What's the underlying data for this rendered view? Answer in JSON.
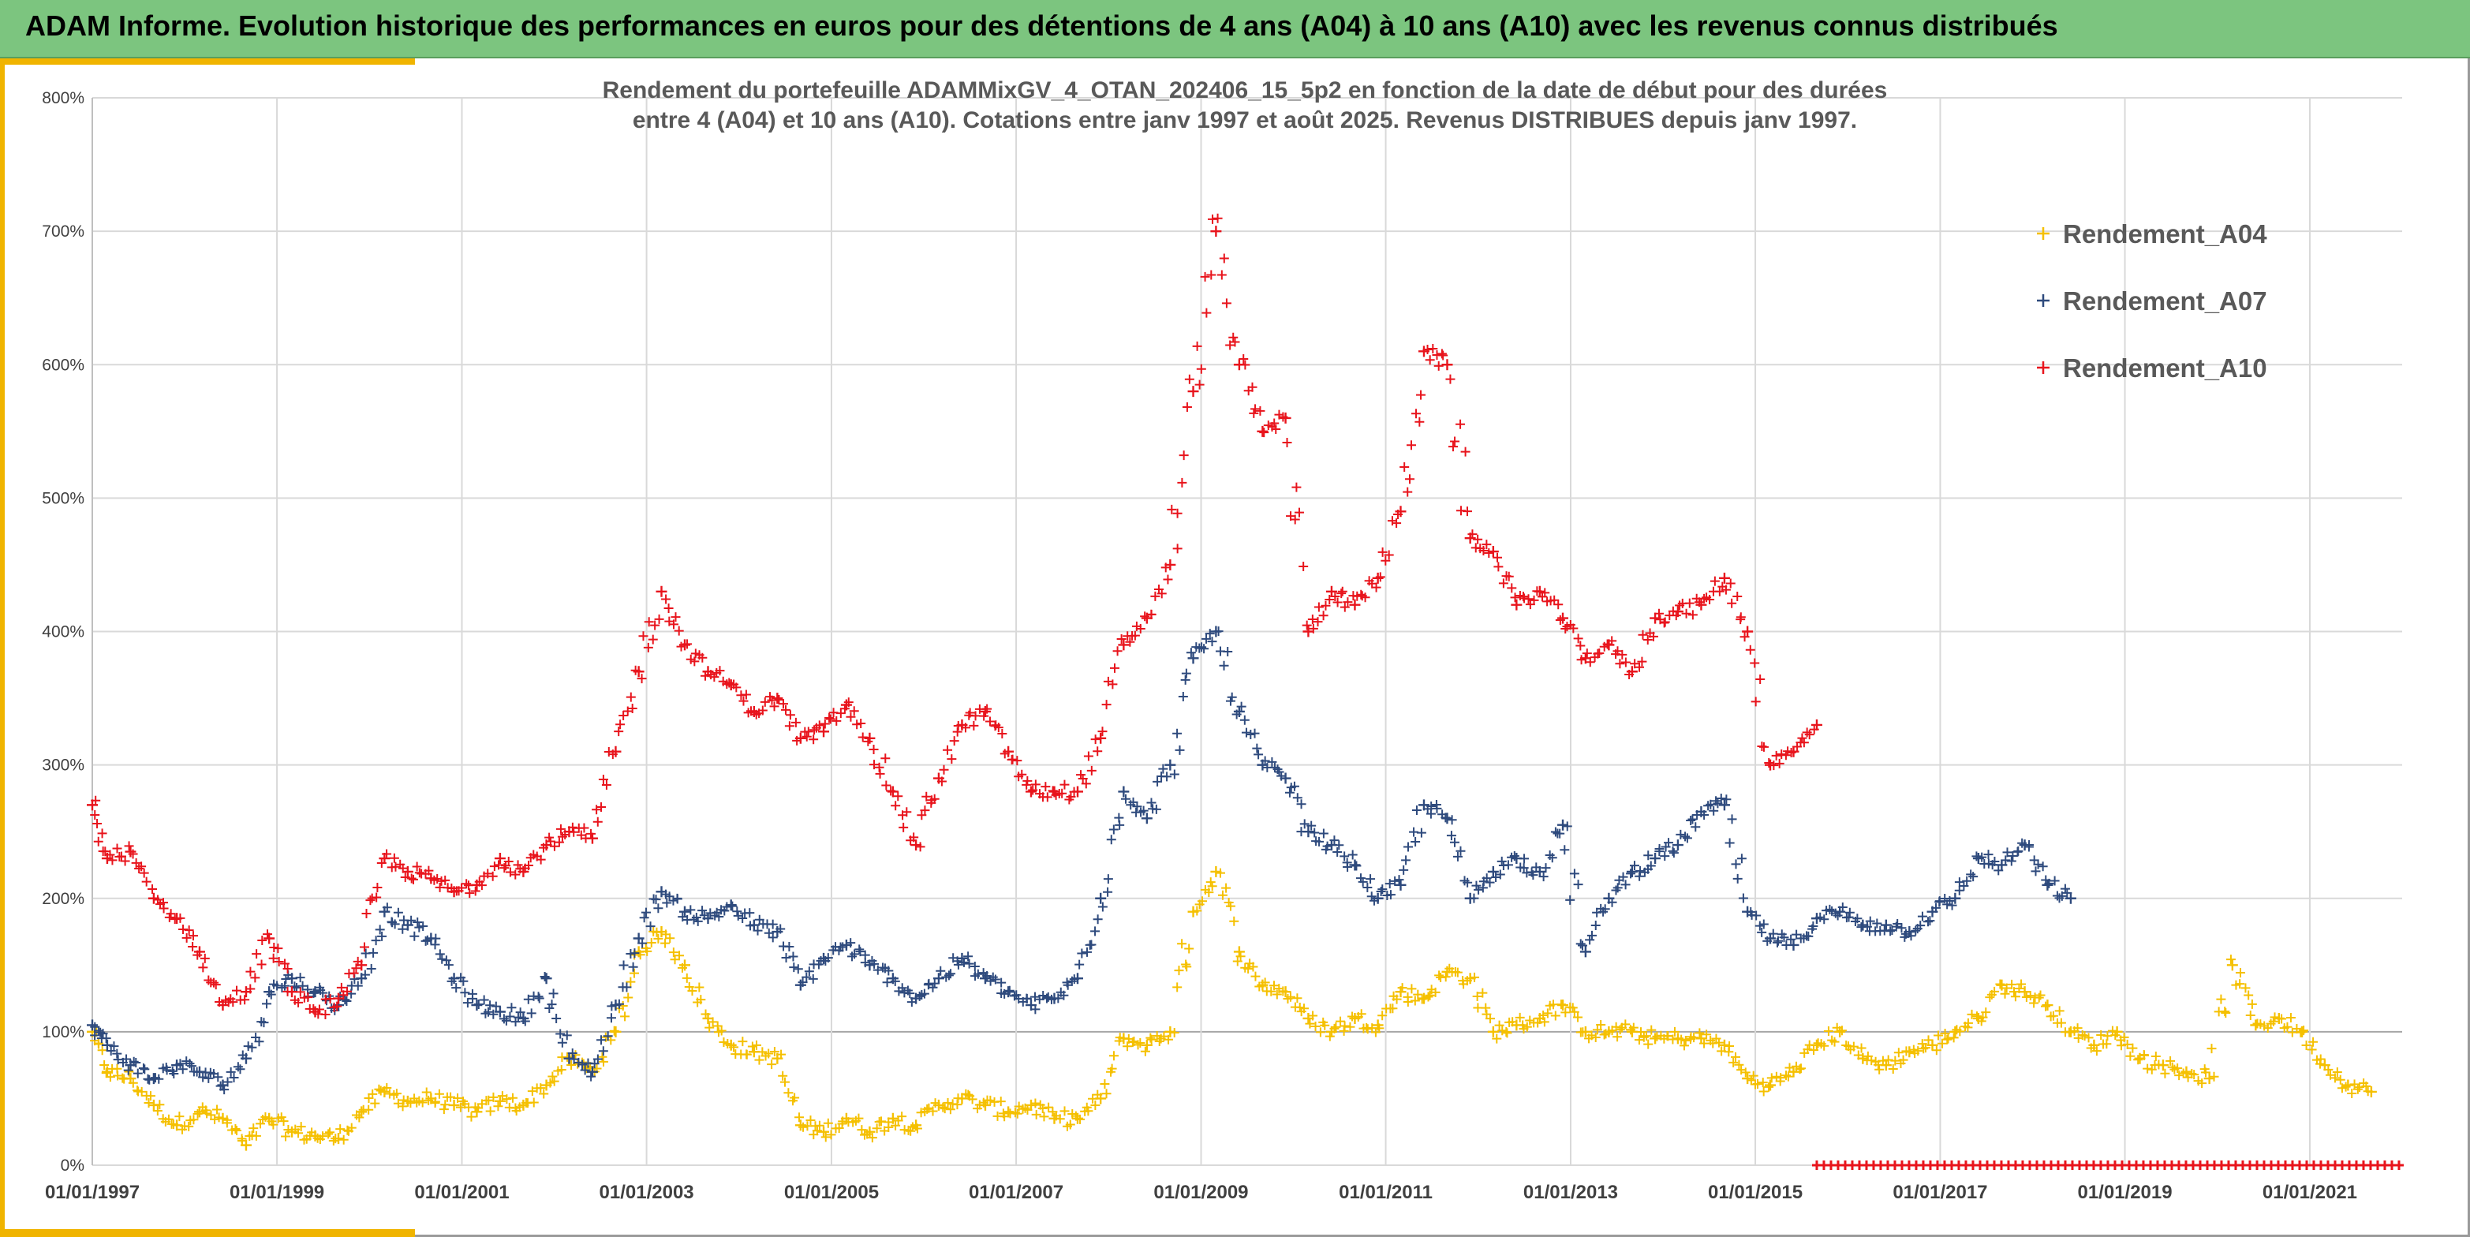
{
  "header": {
    "title": "ADAM Informe. Evolution historique des performances en euros pour des détentions de 4 ans (A04) à 10 ans (A10) avec les revenus connus distribués"
  },
  "colors": {
    "header_bg": "#7cc57f",
    "accent": "#f0b400",
    "A04": "#f5c000",
    "A07": "#2e4a7d",
    "A10": "#e8141c",
    "grid": "#d9d9d9"
  },
  "chart_data": {
    "type": "scatter",
    "title": [
      "Rendement du portefeuille ADAMMixGV_4_OTAN_202406_15_5p2  en fonction de la date de début pour des durées",
      "entre 4 (A04) et 10 ans (A10). Cotations entre janv 1997 et août 2025. Revenus DISTRIBUES depuis janv 1997."
    ],
    "xlabel": "",
    "ylabel": "",
    "x_ticks": [
      "01/01/1997",
      "01/01/1999",
      "01/01/2001",
      "01/01/2003",
      "01/01/2005",
      "01/01/2007",
      "01/01/2009",
      "01/01/2011",
      "01/01/2013",
      "01/01/2015",
      "01/01/2017",
      "01/01/2019",
      "01/01/2021"
    ],
    "y_ticks": [
      "0%",
      "100%",
      "200%",
      "300%",
      "400%",
      "500%",
      "600%",
      "700%",
      "800%"
    ],
    "ylim": [
      0,
      800
    ],
    "xlim": [
      "1997-01-01",
      "2022-01-01"
    ],
    "grid": true,
    "legend_position": "top-right",
    "marker": "+",
    "series": [
      {
        "name": "Rendement_A04",
        "points": [
          [
            "1997-01",
            100
          ],
          [
            "1997-03",
            70
          ],
          [
            "1997-06",
            65
          ],
          [
            "1997-09",
            45
          ],
          [
            "1997-12",
            30
          ],
          [
            "1998-03",
            40
          ],
          [
            "1998-06",
            35
          ],
          [
            "1998-09",
            15
          ],
          [
            "1998-12",
            35
          ],
          [
            "1999-03",
            25
          ],
          [
            "1999-06",
            22
          ],
          [
            "1999-09",
            20
          ],
          [
            "1999-12",
            40
          ],
          [
            "2000-03",
            55
          ],
          [
            "2000-06",
            48
          ],
          [
            "2000-09",
            50
          ],
          [
            "2000-12",
            45
          ],
          [
            "2001-03",
            40
          ],
          [
            "2001-06",
            48
          ],
          [
            "2001-09",
            45
          ],
          [
            "2001-12",
            60
          ],
          [
            "2002-03",
            80
          ],
          [
            "2002-06",
            70
          ],
          [
            "2002-09",
            100
          ],
          [
            "2002-12",
            160
          ],
          [
            "2003-03",
            175
          ],
          [
            "2003-06",
            150
          ],
          [
            "2003-09",
            110
          ],
          [
            "2003-12",
            90
          ],
          [
            "2004-03",
            85
          ],
          [
            "2004-06",
            80
          ],
          [
            "2004-09",
            30
          ],
          [
            "2004-12",
            25
          ],
          [
            "2005-03",
            35
          ],
          [
            "2005-06",
            25
          ],
          [
            "2005-09",
            35
          ],
          [
            "2005-12",
            30
          ],
          [
            "2006-03",
            45
          ],
          [
            "2006-06",
            50
          ],
          [
            "2006-09",
            45
          ],
          [
            "2006-12",
            40
          ],
          [
            "2007-03",
            45
          ],
          [
            "2007-06",
            35
          ],
          [
            "2007-09",
            35
          ],
          [
            "2007-12",
            50
          ],
          [
            "2008-03",
            95
          ],
          [
            "2008-06",
            90
          ],
          [
            "2008-09",
            100
          ],
          [
            "2008-12",
            190
          ],
          [
            "2009-03",
            220
          ],
          [
            "2009-06",
            160
          ],
          [
            "2009-09",
            135
          ],
          [
            "2009-12",
            130
          ],
          [
            "2010-03",
            110
          ],
          [
            "2010-06",
            100
          ],
          [
            "2010-09",
            110
          ],
          [
            "2010-12",
            105
          ],
          [
            "2011-03",
            130
          ],
          [
            "2011-06",
            125
          ],
          [
            "2011-09",
            145
          ],
          [
            "2011-12",
            140
          ],
          [
            "2012-03",
            100
          ],
          [
            "2012-06",
            105
          ],
          [
            "2012-09",
            110
          ],
          [
            "2012-12",
            120
          ],
          [
            "2013-03",
            100
          ],
          [
            "2013-06",
            100
          ],
          [
            "2013-09",
            100
          ],
          [
            "2013-12",
            95
          ],
          [
            "2014-03",
            95
          ],
          [
            "2014-06",
            95
          ],
          [
            "2014-09",
            90
          ],
          [
            "2014-12",
            65
          ],
          [
            "2015-03",
            60
          ],
          [
            "2015-06",
            70
          ],
          [
            "2015-09",
            90
          ],
          [
            "2015-12",
            100
          ],
          [
            "2016-03",
            80
          ],
          [
            "2016-06",
            75
          ],
          [
            "2016-09",
            85
          ],
          [
            "2016-12",
            90
          ],
          [
            "2017-03",
            100
          ],
          [
            "2017-06",
            110
          ],
          [
            "2017-09",
            135
          ],
          [
            "2017-12",
            130
          ],
          [
            "2018-03",
            120
          ],
          [
            "2018-06",
            100
          ],
          [
            "2018-09",
            90
          ],
          [
            "2018-12",
            100
          ],
          [
            "2019-03",
            80
          ],
          [
            "2019-06",
            75
          ],
          [
            "2019-09",
            70
          ],
          [
            "2019-12",
            65
          ],
          [
            "2020-03",
            150
          ],
          [
            "2020-06",
            105
          ],
          [
            "2020-09",
            110
          ],
          [
            "2020-12",
            100
          ],
          [
            "2021-03",
            75
          ],
          [
            "2021-06",
            60
          ],
          [
            "2021-09",
            55
          ]
        ]
      },
      {
        "name": "Rendement_A07",
        "points": [
          [
            "1997-01",
            105
          ],
          [
            "1997-03",
            90
          ],
          [
            "1997-06",
            75
          ],
          [
            "1997-09",
            65
          ],
          [
            "1997-12",
            75
          ],
          [
            "1998-03",
            70
          ],
          [
            "1998-06",
            60
          ],
          [
            "1998-09",
            80
          ],
          [
            "1998-12",
            130
          ],
          [
            "1999-03",
            140
          ],
          [
            "1999-06",
            130
          ],
          [
            "1999-09",
            120
          ],
          [
            "1999-12",
            140
          ],
          [
            "2000-03",
            190
          ],
          [
            "2000-06",
            180
          ],
          [
            "2000-09",
            170
          ],
          [
            "2000-12",
            140
          ],
          [
            "2001-03",
            120
          ],
          [
            "2001-06",
            115
          ],
          [
            "2001-09",
            110
          ],
          [
            "2001-12",
            140
          ],
          [
            "2002-03",
            80
          ],
          [
            "2002-06",
            70
          ],
          [
            "2002-09",
            120
          ],
          [
            "2002-12",
            170
          ],
          [
            "2003-03",
            205
          ],
          [
            "2003-06",
            190
          ],
          [
            "2003-09",
            185
          ],
          [
            "2003-12",
            195
          ],
          [
            "2004-03",
            180
          ],
          [
            "2004-06",
            175
          ],
          [
            "2004-09",
            135
          ],
          [
            "2004-12",
            155
          ],
          [
            "2005-03",
            165
          ],
          [
            "2005-06",
            150
          ],
          [
            "2005-09",
            140
          ],
          [
            "2005-12",
            125
          ],
          [
            "2006-03",
            140
          ],
          [
            "2006-06",
            155
          ],
          [
            "2006-09",
            140
          ],
          [
            "2006-12",
            130
          ],
          [
            "2007-03",
            120
          ],
          [
            "2007-06",
            125
          ],
          [
            "2007-09",
            140
          ],
          [
            "2007-12",
            200
          ],
          [
            "2008-03",
            280
          ],
          [
            "2008-06",
            260
          ],
          [
            "2008-09",
            300
          ],
          [
            "2008-12",
            380
          ],
          [
            "2009-03",
            400
          ],
          [
            "2009-06",
            340
          ],
          [
            "2009-09",
            300
          ],
          [
            "2009-12",
            290
          ],
          [
            "2010-03",
            250
          ],
          [
            "2010-06",
            240
          ],
          [
            "2010-09",
            225
          ],
          [
            "2010-12",
            200
          ],
          [
            "2011-03",
            210
          ],
          [
            "2011-06",
            270
          ],
          [
            "2011-09",
            260
          ],
          [
            "2011-12",
            200
          ],
          [
            "2012-03",
            220
          ],
          [
            "2012-06",
            230
          ],
          [
            "2012-09",
            220
          ],
          [
            "2012-12",
            255
          ],
          [
            "2013-03",
            160
          ],
          [
            "2013-06",
            200
          ],
          [
            "2013-09",
            220
          ],
          [
            "2013-12",
            230
          ],
          [
            "2014-03",
            240
          ],
          [
            "2014-06",
            265
          ],
          [
            "2014-09",
            270
          ],
          [
            "2014-12",
            190
          ],
          [
            "2015-03",
            170
          ],
          [
            "2015-06",
            165
          ],
          [
            "2015-09",
            185
          ],
          [
            "2015-12",
            190
          ],
          [
            "2016-03",
            180
          ],
          [
            "2016-06",
            180
          ],
          [
            "2016-09",
            175
          ],
          [
            "2016-12",
            190
          ],
          [
            "2017-03",
            200
          ],
          [
            "2017-06",
            230
          ],
          [
            "2017-09",
            225
          ],
          [
            "2017-12",
            240
          ],
          [
            "2018-03",
            210
          ],
          [
            "2018-06",
            200
          ]
        ]
      },
      {
        "name": "Rendement_A10",
        "points": [
          [
            "1997-01",
            270
          ],
          [
            "1997-03",
            230
          ],
          [
            "1997-06",
            235
          ],
          [
            "1997-09",
            200
          ],
          [
            "1997-12",
            185
          ],
          [
            "1998-03",
            160
          ],
          [
            "1998-06",
            120
          ],
          [
            "1998-09",
            130
          ],
          [
            "1998-12",
            170
          ],
          [
            "1999-03",
            130
          ],
          [
            "1999-06",
            115
          ],
          [
            "1999-09",
            125
          ],
          [
            "1999-12",
            150
          ],
          [
            "2000-03",
            230
          ],
          [
            "2000-06",
            220
          ],
          [
            "2000-09",
            215
          ],
          [
            "2000-12",
            205
          ],
          [
            "2001-03",
            210
          ],
          [
            "2001-06",
            230
          ],
          [
            "2001-09",
            220
          ],
          [
            "2001-12",
            240
          ],
          [
            "2002-03",
            250
          ],
          [
            "2002-06",
            245
          ],
          [
            "2002-09",
            310
          ],
          [
            "2002-12",
            370
          ],
          [
            "2003-03",
            430
          ],
          [
            "2003-06",
            390
          ],
          [
            "2003-09",
            370
          ],
          [
            "2003-12",
            360
          ],
          [
            "2004-03",
            340
          ],
          [
            "2004-06",
            350
          ],
          [
            "2004-09",
            320
          ],
          [
            "2004-12",
            325
          ],
          [
            "2005-03",
            345
          ],
          [
            "2005-06",
            320
          ],
          [
            "2005-09",
            280
          ],
          [
            "2005-12",
            240
          ],
          [
            "2006-03",
            290
          ],
          [
            "2006-06",
            330
          ],
          [
            "2006-09",
            340
          ],
          [
            "2006-12",
            310
          ],
          [
            "2007-03",
            280
          ],
          [
            "2007-06",
            280
          ],
          [
            "2007-09",
            280
          ],
          [
            "2007-12",
            320
          ],
          [
            "2008-03",
            390
          ],
          [
            "2008-06",
            410
          ],
          [
            "2008-09",
            450
          ],
          [
            "2008-12",
            580
          ],
          [
            "2009-03",
            700
          ],
          [
            "2009-06",
            600
          ],
          [
            "2009-09",
            550
          ],
          [
            "2009-12",
            560
          ],
          [
            "2010-03",
            400
          ],
          [
            "2010-06",
            430
          ],
          [
            "2010-09",
            420
          ],
          [
            "2010-12",
            440
          ],
          [
            "2011-03",
            490
          ],
          [
            "2011-06",
            610
          ],
          [
            "2011-09",
            600
          ],
          [
            "2011-12",
            470
          ],
          [
            "2012-03",
            460
          ],
          [
            "2012-06",
            420
          ],
          [
            "2012-09",
            430
          ],
          [
            "2012-12",
            410
          ],
          [
            "2013-03",
            380
          ],
          [
            "2013-06",
            390
          ],
          [
            "2013-09",
            370
          ],
          [
            "2013-12",
            410
          ],
          [
            "2014-03",
            415
          ],
          [
            "2014-06",
            420
          ],
          [
            "2014-09",
            440
          ],
          [
            "2014-12",
            400
          ],
          [
            "2015-03",
            300
          ],
          [
            "2015-06",
            310
          ],
          [
            "2015-09",
            330
          ]
        ]
      },
      {
        "name": "",
        "note_type": "baseline",
        "x_range": [
          "2015-09",
          "2022-01"
        ],
        "value": 0
      }
    ]
  }
}
